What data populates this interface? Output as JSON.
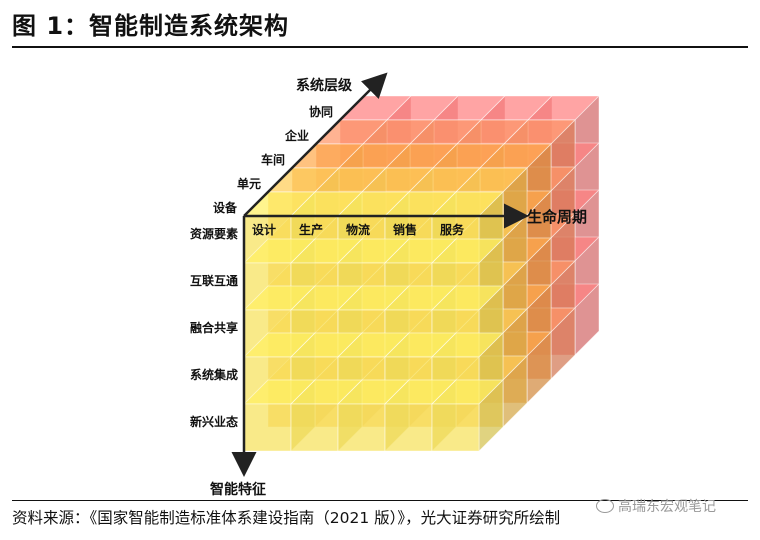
{
  "title": "图 1：智能制造系统架构",
  "source": "资料来源：《国家智能制造标准体系建设指南（2021 版）》，光大证券研究所绘制",
  "watermark": "高瑞东宏观笔记",
  "axes": {
    "system_level": {
      "title": "系统层级",
      "items": [
        "设备",
        "单元",
        "车间",
        "企业",
        "协同"
      ]
    },
    "lifecycle": {
      "title": "生命周期",
      "items": [
        "设计",
        "生产",
        "物流",
        "销售",
        "服务"
      ]
    },
    "features": {
      "title": "智能特征",
      "items": [
        "资源要素",
        "互联互通",
        "融合共享",
        "系统集成",
        "新兴业态"
      ]
    }
  },
  "colors": {
    "front_yellow": "#f7e25c",
    "mid_orange": "#f5a04a",
    "back_red": "#f47a7a",
    "axis": "#222222"
  }
}
